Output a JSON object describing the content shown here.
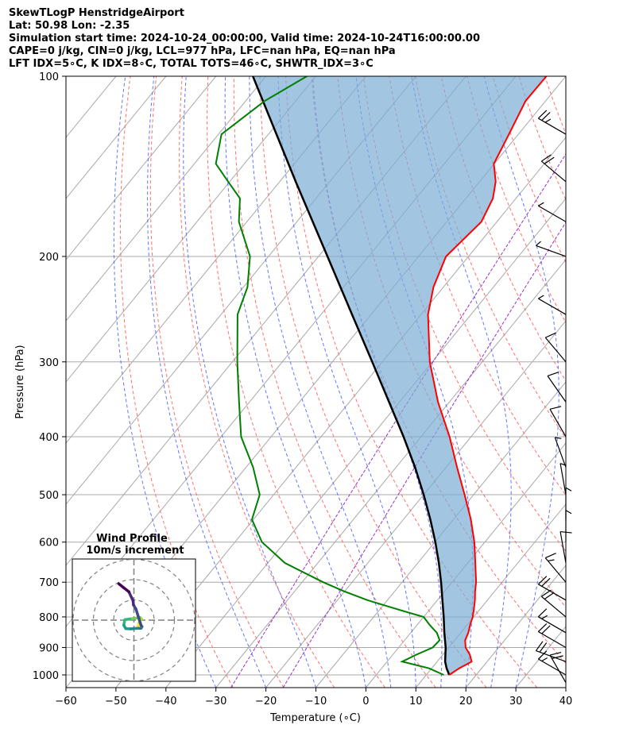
{
  "header": {
    "line1": "SkewTLogP HenstridgeAirport",
    "line2": "Lat: 50.98   Lon: -2.35",
    "line3": "Simulation start time: 2024-10-24_00:00:00, Valid time: 2024-10-24T16:00:00.00",
    "line4": "CAPE=0 j/kg, CIN=0 j/kg, LCL=977 hPa, LFC=nan hPa, EQ=nan hPa",
    "line5": "LFT IDX=5∘C, K IDX=8∘C, TOTAL TOTS=46∘C, SHWTR_IDX=3∘C"
  },
  "colors": {
    "temperature": "#ff0000",
    "dewpoint": "#008000",
    "parcel": "#000000",
    "cin_fill": "#7aaed4",
    "dry_adiabat": "#ff6060",
    "moist_adiabat": "#4a5cff",
    "mixing_ratio_line": "#9a30c8",
    "isotherm": "#a8a8a8",
    "isobar": "#a8a8a8"
  },
  "chart_data": [
    {
      "type": "line",
      "subtype": "skew-T log-P diagram",
      "xlabel": "Temperature (∘C)",
      "ylabel": "Pressure (hPa)",
      "xlim": [
        -60,
        40
      ],
      "ylim": [
        1050,
        100
      ],
      "y_scale": "log",
      "x_ticks": [
        "−60",
        "−50",
        "−40",
        "−30",
        "−20",
        "−10",
        "0",
        "10",
        "20",
        "30",
        "40"
      ],
      "x_tick_values": [
        -60,
        -50,
        -40,
        -30,
        -20,
        -10,
        0,
        10,
        20,
        30,
        40
      ],
      "y_ticks": [
        "100",
        "200",
        "300",
        "400",
        "500",
        "600",
        "700",
        "800",
        "900",
        "1000"
      ],
      "y_tick_values": [
        100,
        200,
        300,
        400,
        500,
        600,
        700,
        800,
        900,
        1000
      ],
      "grid": true,
      "series": [
        {
          "key": "temperature",
          "pressure": [
            1000,
            975,
            950,
            925,
            900,
            875,
            850,
            825,
            800,
            775,
            750,
            725,
            700,
            650,
            600,
            550,
            500,
            450,
            400,
            350,
            300,
            250,
            225,
            200,
            175,
            160,
            150,
            140,
            125,
            110,
            100
          ],
          "values": [
            14.6,
            15.5,
            16.9,
            15.4,
            13.4,
            12.1,
            11.5,
            10.6,
            9.8,
            8.7,
            7.5,
            6.1,
            4.8,
            1.5,
            -2.1,
            -6.5,
            -11.8,
            -17.8,
            -24.3,
            -32.3,
            -40.5,
            -48.6,
            -52.0,
            -54.5,
            -53.1,
            -54.6,
            -56.8,
            -60.1,
            -61.9,
            -64.0,
            -63.9
          ]
        },
        {
          "key": "dewpoint",
          "pressure": [
            1000,
            975,
            950,
            925,
            900,
            875,
            850,
            825,
            800,
            775,
            750,
            725,
            700,
            650,
            600,
            550,
            500,
            450,
            400,
            350,
            300,
            250,
            225,
            200,
            175,
            160,
            150,
            140,
            125,
            110,
            100
          ],
          "values": [
            13.5,
            9.5,
            3.0,
            4.7,
            6.8,
            7.0,
            5.2,
            2.5,
            0.0,
            -7.0,
            -14.0,
            -20.1,
            -25.8,
            -36.6,
            -44.6,
            -50.3,
            -52.8,
            -58.6,
            -66.0,
            -72.1,
            -79.0,
            -86.7,
            -89.2,
            -93.7,
            -101.6,
            -105.2,
            -110.3,
            -115.7,
            -119.4,
            -116.2,
            -111.8
          ]
        },
        {
          "key": "parcel",
          "pressure": [
            1000,
            975,
            950,
            900,
            850,
            800,
            750,
            700,
            650,
            600,
            550,
            500,
            450,
            400,
            350,
            300,
            250,
            200,
            150,
            125,
            100
          ],
          "values": [
            14.6,
            13.0,
            11.6,
            9.4,
            6.7,
            4.0,
            1.0,
            -2.2,
            -5.8,
            -9.9,
            -14.6,
            -20.0,
            -26.2,
            -33.5,
            -42.1,
            -52.0,
            -63.8,
            -78.2,
            -96.8,
            -108.4,
            -122.6
          ]
        }
      ],
      "shading": "area between temperature and parcel profiles"
    },
    {
      "type": "scatter",
      "subtype": "hodograph",
      "title": "Wind Profile",
      "subtitle": "10m/s increment",
      "rings_m_s": [
        10,
        20,
        30
      ],
      "u": [
        2.0,
        2.6,
        3.8,
        3.0,
        1.2,
        -2.0,
        -4.5,
        -5.0,
        -4.0,
        -1.5,
        1.8,
        3.5,
        4.0,
        3.5,
        1.0,
        -0.2,
        -0.4,
        -2.5,
        -5.0,
        -7.5
      ],
      "v": [
        -3.0,
        -1.0,
        0.6,
        1.3,
        1.0,
        0.6,
        0.2,
        -2.5,
        -4.2,
        -4.3,
        -4.0,
        -4.0,
        -3.2,
        -2.5,
        5.5,
        7.5,
        9.5,
        14.0,
        16.0,
        18.0
      ]
    }
  ],
  "wind_barbs": {
    "pressure": [
      1030,
      1000,
      950,
      900,
      850,
      800,
      750,
      700,
      650,
      600,
      550,
      500,
      450,
      400,
      350,
      300,
      250,
      200,
      175,
      150,
      125
    ],
    "speed_kt": [
      20,
      18,
      20,
      20,
      18,
      20,
      22,
      15,
      10,
      8,
      7,
      5,
      8,
      10,
      12,
      10,
      8,
      7,
      8,
      20,
      28
    ],
    "dir_deg": [
      330,
      300,
      290,
      300,
      300,
      310,
      300,
      320,
      350,
      360,
      360,
      350,
      340,
      330,
      325,
      320,
      300,
      290,
      300,
      310,
      300
    ]
  }
}
